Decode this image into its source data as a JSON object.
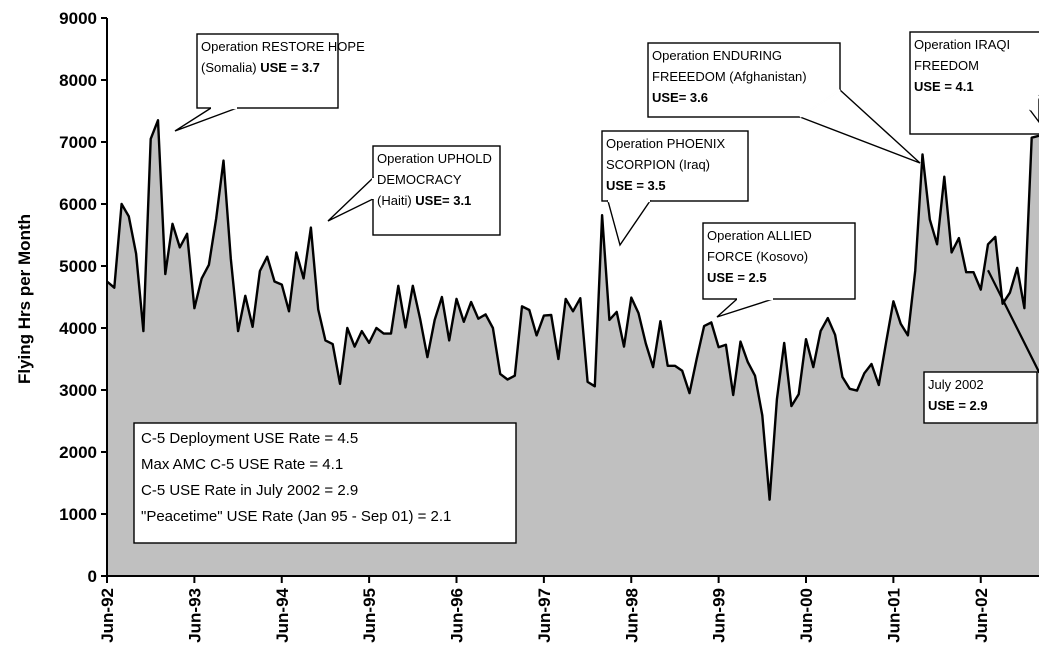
{
  "chart_data": {
    "type": "area",
    "title": "",
    "xlabel": "",
    "ylabel": "Flying Hrs per Month",
    "ylim": [
      0,
      9000
    ],
    "yticks": [
      "0",
      "1000",
      "2000",
      "3000",
      "4000",
      "5000",
      "6000",
      "7000",
      "8000",
      "9000"
    ],
    "xticks": [
      "Jun-92",
      "Jun-93",
      "Jun-94",
      "Jun-95",
      "Jun-96",
      "Jun-97",
      "Jun-98",
      "Jun-99",
      "Jun-00",
      "Jun-01",
      "Jun-02"
    ],
    "x_start": "Jun-92",
    "x_end": "Nov-02",
    "grid": false,
    "fill_color": "#c0c0c0",
    "line_color": "#000000",
    "series": [
      {
        "values": [
          4750,
          4650,
          6000,
          5800,
          5200,
          3950,
          7050,
          7350,
          4870,
          5680,
          5300,
          5520,
          4320,
          4800,
          5020,
          5770,
          6700,
          5120,
          3950,
          4520,
          4020,
          4920,
          5150,
          4750,
          4700,
          4270,
          5220,
          4800,
          5620,
          4300,
          3800,
          3740,
          3100,
          4000,
          3700,
          3950,
          3760,
          4000,
          3910,
          3910,
          4680,
          4010,
          4680,
          4150,
          3530,
          4130,
          4500,
          3800,
          4470,
          4100,
          4420,
          4150,
          4220,
          4000,
          3260,
          3170,
          3230,
          4350,
          4290,
          3880,
          4200,
          4210,
          3500,
          4470,
          4270,
          4480,
          3130,
          3060,
          5820,
          4130,
          4260,
          3700,
          4490,
          4240,
          3750,
          3370,
          4110,
          3390,
          3390,
          3310,
          2950,
          3510,
          4030,
          4090,
          3690,
          3730,
          2920,
          3780,
          3450,
          3230,
          2590,
          1230,
          2850,
          3760,
          2740,
          2930,
          3820,
          3370,
          3950,
          4160,
          3890,
          3210,
          3020,
          2990,
          3270,
          3420,
          3080,
          3770,
          4430,
          4070,
          3880,
          4920,
          6800,
          5750,
          5350,
          6440,
          5220,
          5450,
          4900,
          4900,
          4620,
          5350,
          5470,
          4390,
          4570,
          4970,
          4320,
          7070,
          7100
        ]
      },
      {
        "name": "",
        "values": [
          4930,
          3290,
          3270
        ]
      }
    ],
    "annotations": [
      {
        "lines": [
          {
            "text": "Operation RESTORE HOPE"
          },
          {
            "text": "(Somalia) ",
            "bold_suffix": "USE = 3.7"
          }
        ]
      },
      {
        "lines": [
          {
            "text": "Operation UPHOLD"
          },
          {
            "text": "DEMOCRACY"
          },
          {
            "text": "(Haiti) ",
            "bold_suffix": "USE= 3.1"
          }
        ]
      },
      {
        "lines": [
          {
            "text": "Operation PHOENIX"
          },
          {
            "text": "SCORPION (Iraq)"
          },
          {
            "text": "",
            "bold_suffix": "USE = 3.5"
          }
        ]
      },
      {
        "lines": [
          {
            "text": "Operation ALLIED"
          },
          {
            "text": "FORCE (Kosovo)"
          },
          {
            "text": "",
            "bold_suffix": "USE = 2.5"
          }
        ]
      },
      {
        "lines": [
          {
            "text": "Operation ENDURING"
          },
          {
            "text": "FREEEDOM (Afghanistan)"
          },
          {
            "text": "",
            "bold_suffix": "USE= 3.6"
          }
        ]
      },
      {
        "lines": [
          {
            "text": "Operation IRAQI"
          },
          {
            "text": "FREEDOM"
          },
          {
            "text": "",
            "bold_suffix": "USE = 4.1"
          }
        ]
      },
      {
        "lines": [
          {
            "text": "July 2002"
          },
          {
            "text": "",
            "bold_suffix": "USE = 2.9"
          }
        ]
      }
    ],
    "info_box": [
      "C-5 Deployment USE Rate = 4.5",
      "Max AMC C-5 USE Rate = 4.1",
      "C-5 USE Rate in July 2002 = 2.9",
      "\"Peacetime\" USE Rate (Jan 95 - Sep 01) = 2.1"
    ]
  }
}
